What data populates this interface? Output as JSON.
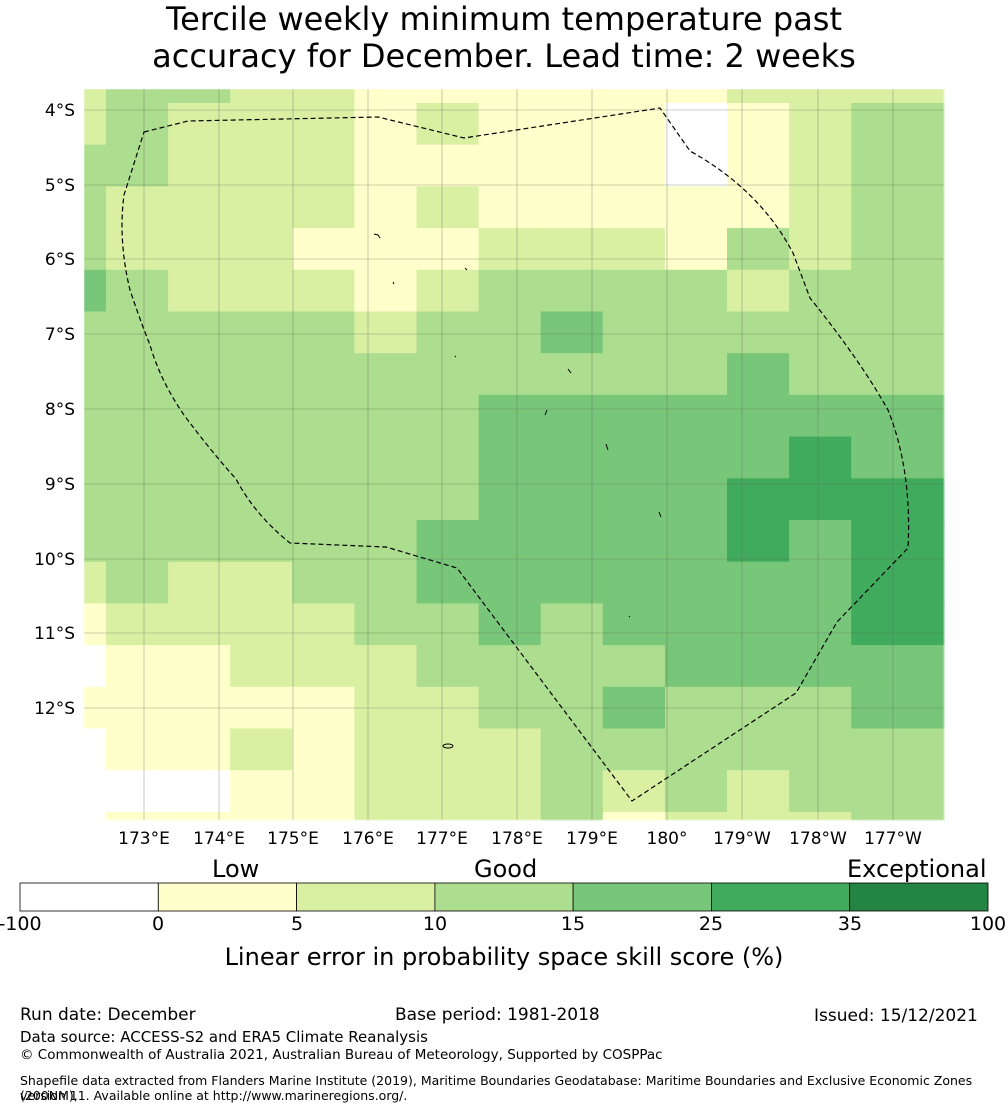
{
  "title": {
    "line1": "Tercile weekly minimum temperature past",
    "line2": "accuracy for December. Lead time: 2 weeks"
  },
  "map": {
    "y_labels": [
      "4°S",
      "5°S",
      "6°S",
      "7°S",
      "8°S",
      "9°S",
      "10°S",
      "11°S",
      "12°S"
    ],
    "x_labels": [
      "173°E",
      "174°E",
      "175°E",
      "176°E",
      "177°E",
      "178°E",
      "179°E",
      "180°",
      "179°W",
      "178°W",
      "177°W"
    ],
    "grid": [
      [
        2,
        3,
        3,
        2,
        2,
        1,
        1,
        1,
        1,
        1,
        1,
        2,
        2,
        2
      ],
      [
        2,
        3,
        2,
        2,
        2,
        1,
        2,
        1,
        1,
        1,
        0,
        1,
        2,
        3
      ],
      [
        3,
        3,
        2,
        2,
        2,
        1,
        1,
        1,
        1,
        1,
        0,
        1,
        2,
        3
      ],
      [
        3,
        2,
        2,
        2,
        2,
        1,
        2,
        1,
        1,
        1,
        1,
        1,
        2,
        3
      ],
      [
        3,
        2,
        2,
        2,
        1,
        1,
        1,
        2,
        2,
        2,
        1,
        3,
        2,
        3
      ],
      [
        4,
        3,
        2,
        2,
        2,
        1,
        2,
        3,
        3,
        3,
        3,
        2,
        3,
        3
      ],
      [
        3,
        3,
        3,
        3,
        3,
        2,
        3,
        3,
        4,
        3,
        3,
        3,
        3,
        3
      ],
      [
        3,
        3,
        3,
        3,
        3,
        3,
        3,
        3,
        3,
        3,
        3,
        4,
        3,
        3
      ],
      [
        3,
        3,
        3,
        3,
        3,
        3,
        3,
        4,
        4,
        4,
        4,
        4,
        4,
        4
      ],
      [
        3,
        3,
        3,
        3,
        3,
        3,
        3,
        4,
        4,
        4,
        4,
        4,
        5,
        4
      ],
      [
        3,
        3,
        3,
        3,
        3,
        3,
        3,
        4,
        4,
        4,
        4,
        5,
        5,
        5
      ],
      [
        3,
        3,
        3,
        3,
        3,
        3,
        4,
        4,
        4,
        4,
        4,
        5,
        4,
        5
      ],
      [
        2,
        3,
        2,
        2,
        3,
        3,
        4,
        4,
        4,
        4,
        4,
        4,
        4,
        5
      ],
      [
        1,
        2,
        2,
        2,
        2,
        3,
        3,
        4,
        3,
        4,
        4,
        4,
        4,
        5
      ],
      [
        0,
        1,
        1,
        2,
        2,
        2,
        3,
        3,
        3,
        3,
        4,
        4,
        4,
        4
      ],
      [
        1,
        1,
        1,
        1,
        1,
        2,
        2,
        3,
        3,
        4,
        3,
        3,
        3,
        4
      ],
      [
        0,
        1,
        1,
        2,
        1,
        2,
        2,
        2,
        3,
        3,
        3,
        3,
        3,
        3
      ],
      [
        0,
        0,
        0,
        1,
        1,
        2,
        2,
        2,
        3,
        2,
        3,
        2,
        3,
        3
      ],
      [
        0,
        1,
        1,
        1,
        1,
        2,
        2,
        2,
        3,
        1,
        2,
        2,
        2,
        3
      ]
    ]
  },
  "colorbar": {
    "category_labels": [
      "Low",
      "Good",
      "Exceptional"
    ],
    "bounds": [
      "-100",
      "0",
      "5",
      "10",
      "15",
      "25",
      "35",
      "100"
    ],
    "colors": [
      "#ffffff",
      "#ffffcc",
      "#d9f0a3",
      "#addd8e",
      "#78c679",
      "#41ab5d",
      "#238443"
    ],
    "title": "Linear error in probability space skill score (%)"
  },
  "footer": {
    "run_date": "Run date: December",
    "base_period": "Base period: 1981-2018",
    "issued": "Issued: 15/12/2021",
    "data_source": "Data source: ACCESS-S2 and ERA5 Climate Reanalysis",
    "copyright": "© Commonwealth of Australia 2021, Australian Bureau of Meteorology, Supported by COSPPac",
    "shapefile_line1": "Shapefile data extracted from Flanders Marine Institute (2019), Maritime Boundaries Geodatabase: Maritime Boundaries and Exclusive Economic Zones (200NM),",
    "shapefile_line2": "version 11. Available online at http://www.marineregions.org/."
  }
}
